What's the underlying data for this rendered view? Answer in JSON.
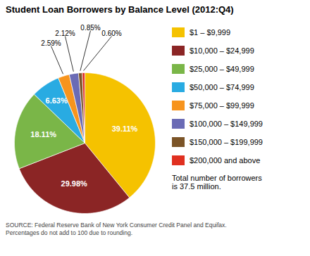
{
  "chart_data": {
    "type": "pie",
    "title": "Student Loan Borrowers by Balance Level  (2012:Q4)",
    "categories": [
      "$1 – $9,999",
      "$10,000 – $24,999",
      "$25,000 – $49,999",
      "$50,000 – $74,999",
      "$75,000 – $99,999",
      "$100,000 – $149,999",
      "$150,000 – $199,999",
      "$200,000 and above"
    ],
    "values": [
      39.11,
      29.98,
      18.11,
      6.63,
      2.59,
      2.12,
      0.85,
      0.6
    ],
    "value_labels": [
      "39.11%",
      "29.98%",
      "18.11%",
      "6.63%",
      "2.59%",
      "2.12%",
      "0.85%",
      "0.60%"
    ],
    "colors": [
      "#F5C200",
      "#8B2525",
      "#7AB648",
      "#29ABE2",
      "#F7941D",
      "#6B6BB5",
      "#7B5427",
      "#E03020"
    ],
    "data_labels": true,
    "legend": "right",
    "annotations": [
      "Total number of borrowers\nis 37.5 million.",
      "SOURCE: Federal Reserve Bank of New York Consumer Credit Panel and Equifax.\nPercentages do not add to 100 due to rounding."
    ]
  }
}
